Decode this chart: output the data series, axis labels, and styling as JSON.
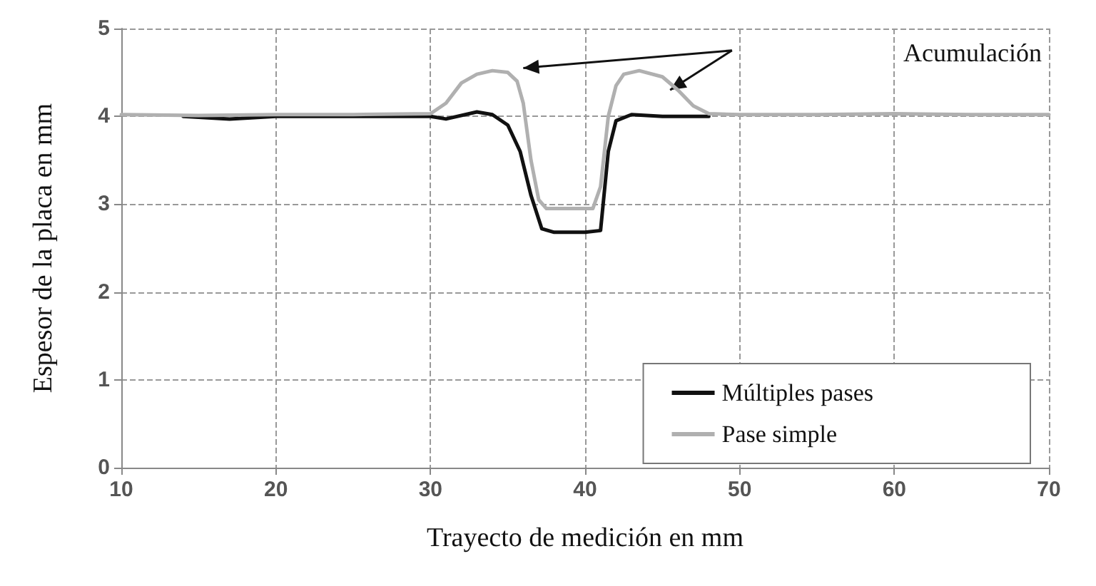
{
  "chart_data": {
    "type": "line",
    "xlabel": "Trayecto de medición en mm",
    "ylabel": "Espesor de la placa en mm",
    "xlim": [
      10,
      70
    ],
    "xticks": [
      10,
      20,
      30,
      40,
      50,
      60,
      70
    ],
    "ylim": [
      0,
      5
    ],
    "yticks": [
      0,
      1,
      2,
      3,
      4,
      5
    ],
    "grid": true,
    "legend": "bottom right",
    "annotations": [
      "Acumulación"
    ],
    "series": [
      {
        "name": "Múltiples pases",
        "color": "#111111",
        "x": [
          14,
          17,
          20,
          25,
          30,
          31,
          33,
          34,
          35,
          35.8,
          36.5,
          37.2,
          38,
          40,
          41,
          41.5,
          42,
          43,
          45,
          48
        ],
        "values": [
          4.0,
          3.97,
          4.0,
          4.0,
          4.0,
          3.97,
          4.05,
          4.02,
          3.9,
          3.6,
          3.1,
          2.72,
          2.68,
          2.68,
          2.7,
          3.6,
          3.95,
          4.02,
          4.0,
          4.0
        ]
      },
      {
        "name": "Pase simple",
        "color": "#b0b0b0",
        "x": [
          10,
          15,
          20,
          25,
          30,
          31,
          32,
          33,
          34,
          35,
          35.6,
          36,
          36.5,
          37,
          37.5,
          40.5,
          41,
          41.5,
          42,
          42.5,
          43.5,
          45,
          46,
          47,
          48,
          50,
          55,
          60,
          65,
          70
        ],
        "values": [
          4.02,
          4.01,
          4.02,
          4.02,
          4.03,
          4.15,
          4.38,
          4.48,
          4.52,
          4.5,
          4.4,
          4.15,
          3.5,
          3.05,
          2.95,
          2.95,
          3.2,
          4.0,
          4.35,
          4.48,
          4.52,
          4.45,
          4.3,
          4.12,
          4.03,
          4.02,
          4.02,
          4.03,
          4.02,
          4.02
        ]
      }
    ]
  }
}
